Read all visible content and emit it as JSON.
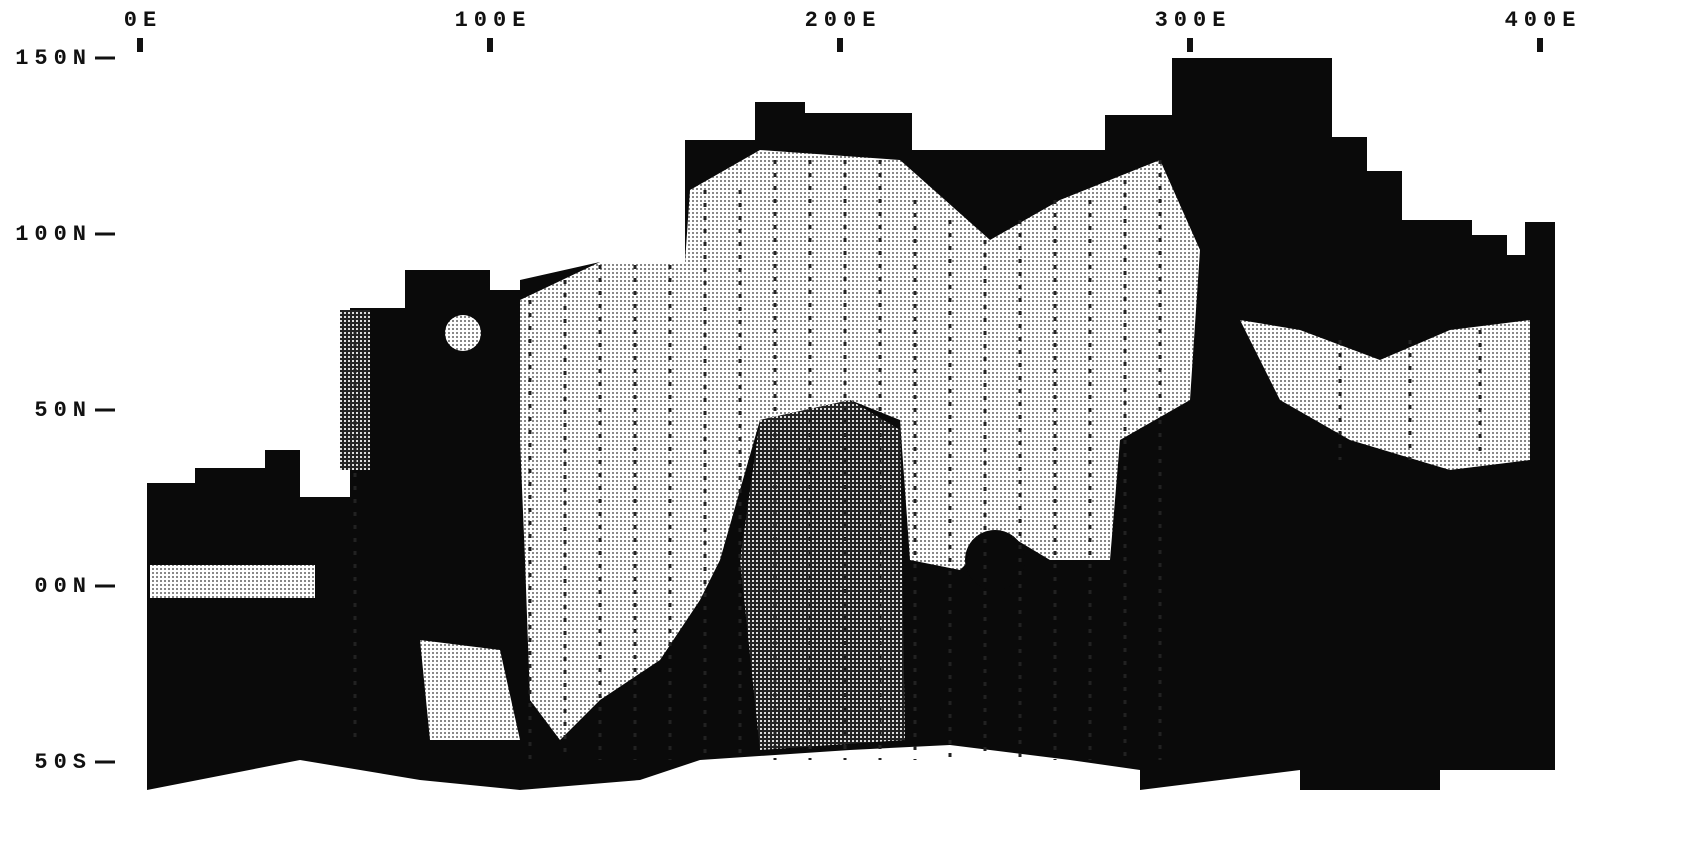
{
  "x_axis": {
    "ticks": [
      {
        "value": 0,
        "label": "0E"
      },
      {
        "value": 100,
        "label": "100E"
      },
      {
        "value": 200,
        "label": "200E"
      },
      {
        "value": 300,
        "label": "300E"
      },
      {
        "value": 400,
        "label": "400E"
      }
    ]
  },
  "y_axis": {
    "ticks": [
      {
        "value": 150,
        "label": "150N"
      },
      {
        "value": 100,
        "label": "100N"
      },
      {
        "value": 50,
        "label": "50N"
      },
      {
        "value": 0,
        "label": "00N"
      },
      {
        "value": -50,
        "label": "50S"
      }
    ]
  }
}
